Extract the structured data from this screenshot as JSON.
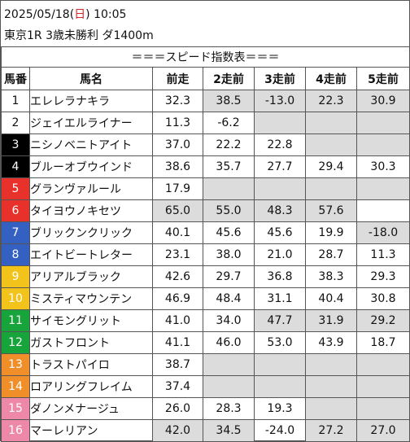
{
  "header": {
    "date": "2025/05/18",
    "weekday_open": "(",
    "weekday": "日",
    "weekday_close": ")",
    "time": "10:05",
    "race_line": "東京1R 3歳未勝利 ダ1400m"
  },
  "table_title": "＝＝＝スピード指数表＝＝＝",
  "columns": [
    "馬番",
    "馬名",
    "前走",
    "2走前",
    "3走前",
    "4走前",
    "5走前"
  ],
  "colors": {
    "frame1": "#ffffff",
    "frame2": "#000000",
    "frame3": "#e8312a",
    "frame4": "#3461c1",
    "frame5": "#f2c31b",
    "frame6": "#17a53b",
    "frame7": "#f08e2a",
    "frame8": "#ee88a8",
    "gray_cell": "#dcdcdc"
  },
  "rows": [
    {
      "num": "1",
      "frame": 1,
      "name": "エレレラナキラ",
      "vals": [
        "32.3",
        "38.5",
        "-13.0",
        "22.3",
        "30.9"
      ],
      "gray": [
        false,
        true,
        true,
        true,
        true
      ]
    },
    {
      "num": "2",
      "frame": 1,
      "name": "ジェイエルライナー",
      "vals": [
        "11.3",
        "-6.2",
        "",
        "",
        ""
      ],
      "gray": [
        false,
        false,
        true,
        true,
        true
      ]
    },
    {
      "num": "3",
      "frame": 2,
      "name": "ニシノベニトアイト",
      "vals": [
        "37.0",
        "22.2",
        "22.8",
        "",
        ""
      ],
      "gray": [
        false,
        false,
        false,
        true,
        true
      ]
    },
    {
      "num": "4",
      "frame": 2,
      "name": "ブルーオブウインド",
      "vals": [
        "38.6",
        "35.7",
        "27.7",
        "29.4",
        "30.3"
      ],
      "gray": [
        false,
        false,
        false,
        false,
        false
      ]
    },
    {
      "num": "5",
      "frame": 3,
      "name": "グランヴァルール",
      "vals": [
        "17.9",
        "",
        "",
        "",
        ""
      ],
      "gray": [
        false,
        true,
        true,
        true,
        true
      ]
    },
    {
      "num": "6",
      "frame": 3,
      "name": "タイヨウノキセツ",
      "vals": [
        "65.0",
        "55.0",
        "48.3",
        "57.6",
        ""
      ],
      "gray": [
        true,
        true,
        true,
        true,
        false
      ]
    },
    {
      "num": "7",
      "frame": 4,
      "name": "ブリックンクリック",
      "vals": [
        "40.1",
        "45.6",
        "45.6",
        "19.9",
        "-18.0"
      ],
      "gray": [
        false,
        false,
        false,
        false,
        true
      ]
    },
    {
      "num": "8",
      "frame": 4,
      "name": "エイトビートレター",
      "vals": [
        "23.1",
        "38.0",
        "21.0",
        "28.7",
        "11.3"
      ],
      "gray": [
        false,
        false,
        false,
        false,
        false
      ]
    },
    {
      "num": "9",
      "frame": 5,
      "name": "アリアルブラック",
      "vals": [
        "42.6",
        "29.7",
        "36.8",
        "38.3",
        "29.3"
      ],
      "gray": [
        false,
        false,
        false,
        false,
        false
      ]
    },
    {
      "num": "10",
      "frame": 5,
      "name": "ミスティマウンテン",
      "vals": [
        "46.9",
        "48.4",
        "31.1",
        "40.4",
        "30.8"
      ],
      "gray": [
        false,
        false,
        false,
        false,
        false
      ]
    },
    {
      "num": "11",
      "frame": 6,
      "name": "サイモングリット",
      "vals": [
        "41.0",
        "34.0",
        "47.7",
        "31.9",
        "29.2"
      ],
      "gray": [
        false,
        false,
        true,
        true,
        true
      ]
    },
    {
      "num": "12",
      "frame": 6,
      "name": "ガストフロント",
      "vals": [
        "41.1",
        "46.0",
        "53.0",
        "43.9",
        "18.7"
      ],
      "gray": [
        false,
        false,
        false,
        false,
        false
      ]
    },
    {
      "num": "13",
      "frame": 7,
      "name": "トラストパイロ",
      "vals": [
        "38.7",
        "",
        "",
        "",
        ""
      ],
      "gray": [
        false,
        true,
        true,
        true,
        true
      ]
    },
    {
      "num": "14",
      "frame": 7,
      "name": "ロアリングフレイム",
      "vals": [
        "37.4",
        "",
        "",
        "",
        ""
      ],
      "gray": [
        false,
        true,
        true,
        true,
        true
      ]
    },
    {
      "num": "15",
      "frame": 8,
      "name": "ダノンメナージュ",
      "vals": [
        "26.0",
        "28.3",
        "19.3",
        "",
        ""
      ],
      "gray": [
        false,
        false,
        false,
        true,
        true
      ]
    },
    {
      "num": "16",
      "frame": 8,
      "name": "マーレリアン",
      "vals": [
        "42.0",
        "34.5",
        "-24.0",
        "27.2",
        "27.0"
      ],
      "gray": [
        true,
        true,
        false,
        true,
        true
      ]
    }
  ]
}
